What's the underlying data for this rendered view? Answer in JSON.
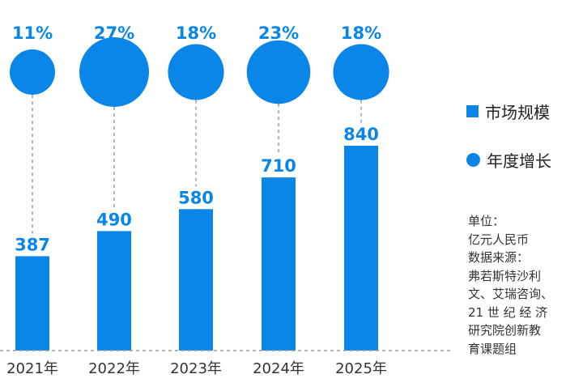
{
  "chart_data": {
    "type": "bar",
    "categories": [
      "2021年",
      "2022年",
      "2023年",
      "2024年",
      "2025年"
    ],
    "series": [
      {
        "name": "市场规模",
        "values": [
          387,
          490,
          580,
          710,
          840
        ]
      },
      {
        "name": "年度增长",
        "values": [
          11,
          27,
          18,
          23,
          18
        ],
        "labels": [
          "11%",
          "27%",
          "18%",
          "23%",
          "18%"
        ]
      }
    ],
    "bar_labels": [
      "387",
      "490",
      "580",
      "710",
      "840"
    ],
    "ylim": [
      0,
      900
    ],
    "grid": false,
    "legend_position": "right"
  },
  "colors": {
    "bar": "#0a86e8",
    "text_blue": "#0a86e8",
    "dash": "#9a9a9a"
  },
  "note": {
    "lines": [
      "单位：",
      "亿元人民币",
      "数据来源：",
      "弗若斯特沙利",
      "文、艾瑞咨询、",
      "21 世 纪 经 济",
      "研究院创新教",
      "育课题组"
    ]
  }
}
